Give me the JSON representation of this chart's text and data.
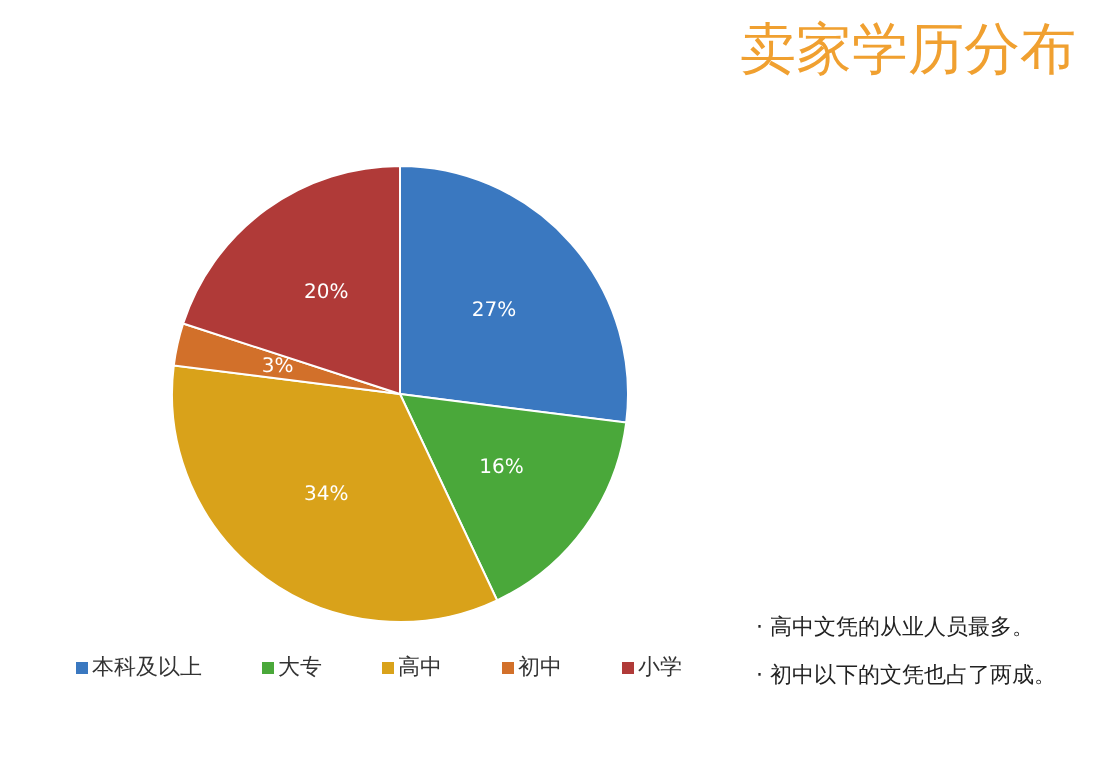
{
  "chart_data": {
    "type": "pie",
    "title": "卖家学历分布",
    "categories": [
      "本科及以上",
      "大专",
      "高中",
      "初中",
      "小学"
    ],
    "values": [
      27,
      16,
      34,
      3,
      20
    ],
    "value_labels": [
      "27%",
      "16%",
      "34%",
      "3%",
      "20%"
    ],
    "colors": [
      "#3a78c0",
      "#4aa83a",
      "#d9a21a",
      "#d2702a",
      "#b03a38"
    ],
    "legend": "bottom",
    "annotations": [
      "· 高中文凭的从业人员最多。",
      "· 初中以下的文凭也占了两成。"
    ]
  }
}
